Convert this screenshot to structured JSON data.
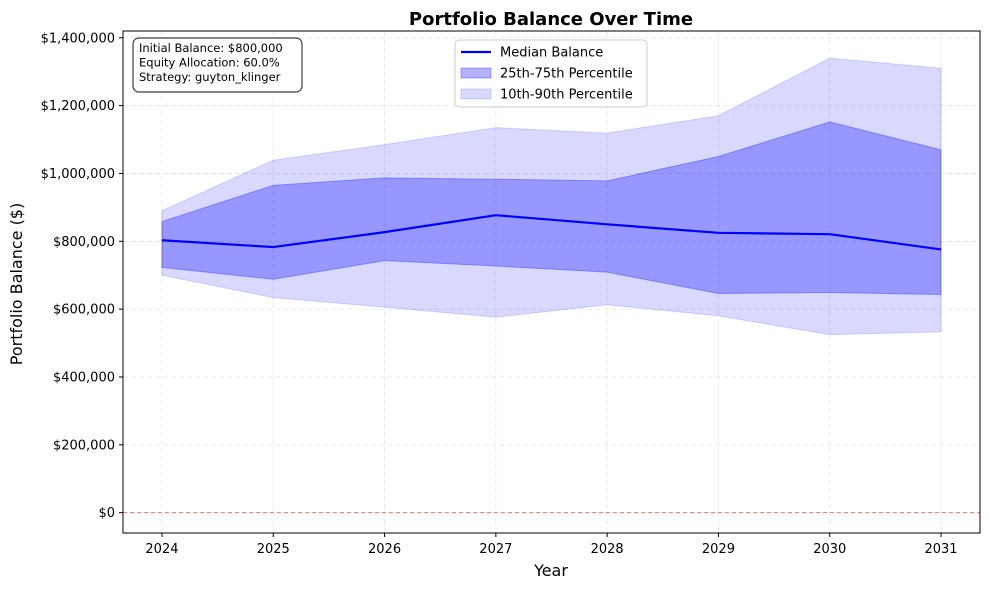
{
  "chart_data": {
    "type": "line",
    "title": "Portfolio Balance Over Time",
    "xlabel": "Year",
    "ylabel": "Portfolio Balance ($)",
    "x": [
      2024,
      2025,
      2026,
      2027,
      2028,
      2029,
      2030,
      2031
    ],
    "x_ticks": [
      "2024",
      "2025",
      "2026",
      "2027",
      "2028",
      "2029",
      "2030",
      "2031"
    ],
    "xlim": [
      2023.65,
      2031.35
    ],
    "ylim": [
      -60000,
      1420000
    ],
    "y_ticks": [
      0,
      200000,
      400000,
      600000,
      800000,
      1000000,
      1200000,
      1400000
    ],
    "y_tick_labels": [
      "$0",
      "$200,000",
      "$400,000",
      "$600,000",
      "$800,000",
      "$1,000,000",
      "$1,200,000",
      "$1,400,000"
    ],
    "grid": true,
    "series": [
      {
        "name": "Median Balance",
        "kind": "line",
        "color": "#0000ff",
        "values": [
          803000,
          783000,
          827000,
          877000,
          850000,
          825000,
          821000,
          776000
        ]
      },
      {
        "name": "25th-75th Percentile",
        "kind": "band",
        "color": "#0000ff",
        "lower": [
          723000,
          688000,
          743000,
          727000,
          709000,
          646000,
          649000,
          643000
        ],
        "upper": [
          858000,
          965000,
          987000,
          983000,
          978000,
          1050000,
          1152000,
          1070000
        ]
      },
      {
        "name": "10th-90th Percentile",
        "kind": "band",
        "color": "#0000ff",
        "lower": [
          700000,
          634000,
          606000,
          576000,
          613000,
          580000,
          525000,
          533000
        ],
        "upper": [
          890000,
          1039000,
          1085000,
          1135000,
          1119000,
          1170000,
          1340000,
          1310000
        ]
      }
    ],
    "reference_line": {
      "y": 0,
      "color": "#e06666"
    },
    "legend": {
      "position": "top-center",
      "entries": [
        "Median Balance",
        "25th-75th Percentile",
        "10th-90th Percentile"
      ]
    },
    "info_box": {
      "position": "top-left",
      "lines": [
        "Initial Balance: $800,000",
        "Equity Allocation: 60.0%",
        "Strategy: guyton_klinger"
      ]
    }
  }
}
